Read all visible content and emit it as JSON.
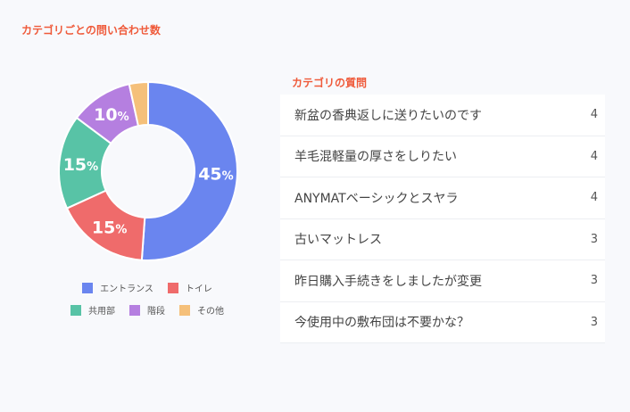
{
  "chart_panel": {
    "title": "カテゴリごとの問い合わせ数"
  },
  "chart_data": {
    "type": "pie",
    "donut": true,
    "slices": [
      {
        "name": "エントランス",
        "value": 45,
        "label": "45",
        "unit": "%",
        "color": "#6a85ef"
      },
      {
        "name": "トイレ",
        "value": 15,
        "label": "15",
        "unit": "%",
        "color": "#ef6b6b"
      },
      {
        "name": "共用部",
        "value": 15,
        "label": "15",
        "unit": "%",
        "color": "#58c3a6"
      },
      {
        "name": "階段",
        "value": 10,
        "label": "10",
        "unit": "%",
        "color": "#b57fe0"
      },
      {
        "name": "その他",
        "value": 3,
        "label": "",
        "unit": "",
        "color": "#f5c07a"
      }
    ],
    "legend_placement": "bottom"
  },
  "question_panel": {
    "title": "カテゴリの質問",
    "items": [
      {
        "text": "新盆の香典返しに送りたいのです",
        "count": "4"
      },
      {
        "text": "羊毛混軽量の厚さをしりたい",
        "count": "4"
      },
      {
        "text": "ANYMATベーシックとスヤラ",
        "count": "4"
      },
      {
        "text": "古いマットレス",
        "count": "3"
      },
      {
        "text": "昨日購入手続きをしましたが変更",
        "count": "3"
      },
      {
        "text": "今使用中の敷布団は不要かな？",
        "count": "3"
      }
    ]
  }
}
